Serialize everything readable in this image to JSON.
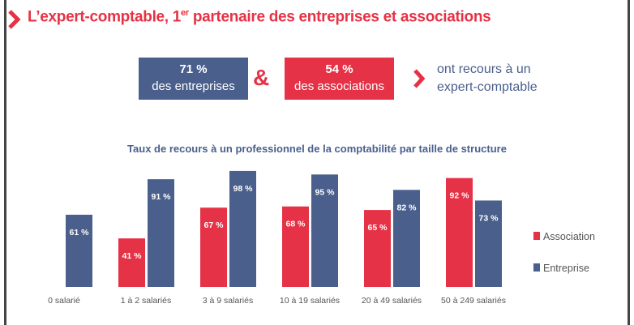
{
  "header": {
    "title_main": "L’expert-comptable, 1",
    "title_sup": "er",
    "title_rest": " partenaire des entreprises et associations"
  },
  "stats": {
    "entreprises": {
      "value": "71 %",
      "label": "des entreprises"
    },
    "amp": "&",
    "associations": {
      "value": "54 %",
      "label": "des associations"
    },
    "note_line1": "ont recours à un",
    "note_line2": "expert-comptable"
  },
  "colors": {
    "association": "#e63246",
    "entreprise": "#4a5f8c",
    "accent": "#e63246"
  },
  "chart_data": {
    "type": "bar",
    "title": "Taux de recours à un professionnel de la comptabilité par taille de structure",
    "categories": [
      "0 salarié",
      "1 à 2 salariés",
      "3 à 9 salariés",
      "10 à 19 salariés",
      "20 à 49 salariés",
      "50 à 249 salariés"
    ],
    "series": [
      {
        "name": "Association",
        "values": [
          null,
          41,
          67,
          68,
          65,
          92
        ],
        "labels": [
          "",
          "41 %",
          "67 %",
          "68 %",
          "65 %",
          "92 %"
        ]
      },
      {
        "name": "Entreprise",
        "values": [
          61,
          91,
          98,
          95,
          82,
          73
        ],
        "labels": [
          "61 %",
          "91 %",
          "98 %",
          "95 %",
          "82 %",
          "73 %"
        ]
      }
    ],
    "ylim": [
      0,
      100
    ],
    "grid": false,
    "legend": "right"
  }
}
